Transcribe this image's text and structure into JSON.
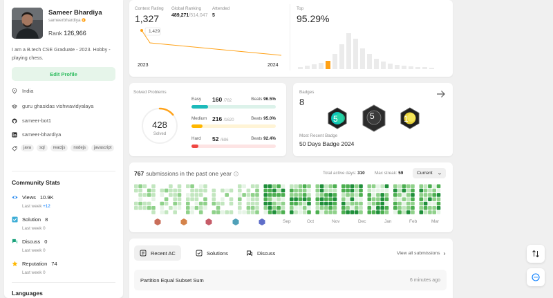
{
  "profile": {
    "name": "Sameer Bhardiya",
    "handle": "sameerbhardiya",
    "rank_label": "Rank",
    "rank_value": "126,966",
    "bio": "I am a B.tech CSE Graduate - 2023. Hobby - playing chess.",
    "edit_label": "Edit Profile",
    "country": "India",
    "university": "guru ghasidas vishwavidyalaya",
    "github": "sameer-bot1",
    "linkedin": "sameer-bhardiya",
    "skills": [
      "java",
      "sql",
      "reactjs",
      "nodejs",
      "javascript"
    ]
  },
  "community": {
    "title": "Community Stats",
    "views": {
      "label": "Views",
      "value": "10.9K",
      "sub": "Last week",
      "delta": "+12"
    },
    "solution": {
      "label": "Solution",
      "value": "8",
      "sub": "Last week",
      "delta": "0"
    },
    "discuss": {
      "label": "Discuss",
      "value": "0",
      "sub": "Last week",
      "delta": "0"
    },
    "reputation": {
      "label": "Reputation",
      "value": "74",
      "sub": "Last week",
      "delta": "0"
    }
  },
  "languages_title": "Languages",
  "contest": {
    "rating_label": "Contest Rating",
    "rating_value": "1,327",
    "global_label": "Global Ranking",
    "global_value": "489,271",
    "global_total": "/514,047",
    "attended_label": "Attended",
    "attended_value": "5",
    "tooltip": "1,429",
    "year_start": "2023",
    "year_end": "2024",
    "top_label": "Top",
    "top_value": "95.29%",
    "histogram": [
      3,
      5,
      7,
      9,
      12,
      22,
      36,
      52,
      44,
      30,
      22,
      15,
      11,
      8,
      6,
      5,
      4,
      3,
      3,
      2
    ],
    "highlight_index": 4
  },
  "solved": {
    "title": "Solved Problems",
    "total": "428",
    "total_label": "Solved",
    "progress": 0.14,
    "easy": {
      "label": "Easy",
      "count": "160",
      "total": "/782",
      "beats_label": "Beats",
      "beats": "96.5%",
      "ratio": 0.2,
      "color": "#1cbaba",
      "bg": "#dcf2ea"
    },
    "medium": {
      "label": "Medium",
      "count": "216",
      "total": "/1620",
      "beats_label": "Beats",
      "beats": "95.0%",
      "ratio": 0.13,
      "color": "#ffb700",
      "bg": "#fff4d6"
    },
    "hard": {
      "label": "Hard",
      "count": "52",
      "total": "/686",
      "beats_label": "Beats",
      "beats": "92.4%",
      "ratio": 0.08,
      "color": "#ef4743",
      "bg": "#fde4e4"
    }
  },
  "badges": {
    "label": "Badges",
    "count": "8",
    "recent_label": "Most Recent Badge",
    "recent_name": "50 Days Badge 2024"
  },
  "submissions": {
    "count": "767",
    "text": "submissions in the past one year",
    "active_label": "Total active days:",
    "active_value": "310",
    "streak_label": "Max streak:",
    "streak_value": "59",
    "period": "Current",
    "months": [
      "Sep",
      "Oct",
      "Nov",
      "Dec",
      "Jan",
      "Feb",
      "Mar"
    ]
  },
  "recent": {
    "tabs": [
      "Recent AC",
      "Solutions",
      "Discuss"
    ],
    "view_all": "View all submissions",
    "items": [
      {
        "title": "Partition Equal Subset Sum",
        "time": "6 minutes ago"
      }
    ]
  }
}
